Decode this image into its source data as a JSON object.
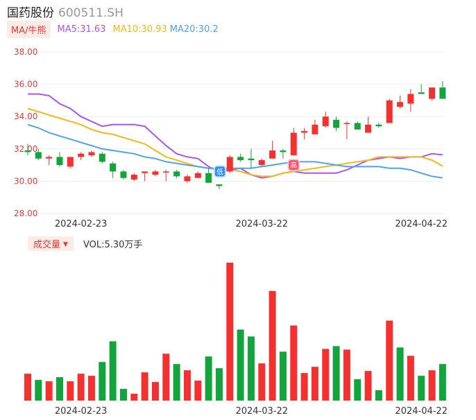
{
  "header": {
    "name": "国药股份",
    "code": "600511.SH"
  },
  "ma_legend": {
    "toggle_label": "MA/牛熊",
    "ma5": "MA5:31.63",
    "ma10": "MA10:30.93",
    "ma20": "MA20:30.2"
  },
  "volume_legend": {
    "toggle_label": "成交量",
    "value": "VOL:5.30万手"
  },
  "markers": {
    "low_marker": "低",
    "high_marker": "高"
  },
  "colors": {
    "up": "#f5302e",
    "down": "#12a53b",
    "ma5": "#a855f7",
    "ma10": "#f5b814",
    "ma20": "#4da3ee",
    "axis_label": "#e4393c",
    "grid": "#eeeeee"
  },
  "chart_data": [
    {
      "type": "candlestick",
      "title": "",
      "ylim": [
        28,
        38
      ],
      "ytick_labels": [
        "38.00",
        "36.00",
        "34.00",
        "32.00",
        "30.00",
        "28.00"
      ],
      "yticks": [
        38,
        36,
        34,
        32,
        30,
        28
      ],
      "xtick_labels": [
        "2024-02-23",
        "2024-03-22",
        "2024-04-22"
      ],
      "xtick_index": [
        5,
        22,
        37
      ],
      "candles": [
        {
          "o": 31.9,
          "c": 31.8,
          "h": 32.3,
          "l": 31.6
        },
        {
          "o": 31.8,
          "c": 31.4,
          "h": 32.0,
          "l": 31.3
        },
        {
          "o": 31.4,
          "c": 31.5,
          "h": 31.6,
          "l": 31.0
        },
        {
          "o": 31.5,
          "c": 31.0,
          "h": 31.8,
          "l": 30.9
        },
        {
          "o": 30.9,
          "c": 31.5,
          "h": 31.5,
          "l": 30.8
        },
        {
          "o": 31.5,
          "c": 31.7,
          "h": 31.8,
          "l": 31.3
        },
        {
          "o": 31.6,
          "c": 31.8,
          "h": 31.9,
          "l": 31.5
        },
        {
          "o": 31.7,
          "c": 31.2,
          "h": 31.8,
          "l": 31.1
        },
        {
          "o": 31.1,
          "c": 30.6,
          "h": 31.2,
          "l": 30.2
        },
        {
          "o": 30.6,
          "c": 30.2,
          "h": 30.7,
          "l": 30.1
        },
        {
          "o": 30.1,
          "c": 30.4,
          "h": 30.5,
          "l": 30.0
        },
        {
          "o": 30.5,
          "c": 30.6,
          "h": 30.6,
          "l": 30.0
        },
        {
          "o": 30.4,
          "c": 30.6,
          "h": 30.7,
          "l": 30.3
        },
        {
          "o": 30.6,
          "c": 30.6,
          "h": 30.7,
          "l": 30.0
        },
        {
          "o": 30.6,
          "c": 30.3,
          "h": 30.7,
          "l": 30.2
        },
        {
          "o": 30.0,
          "c": 30.3,
          "h": 30.4,
          "l": 29.9
        },
        {
          "o": 30.2,
          "c": 30.5,
          "h": 30.6,
          "l": 30.2
        },
        {
          "o": 30.5,
          "c": 29.9,
          "h": 30.8,
          "l": 29.9
        },
        {
          "o": 29.8,
          "c": 29.7,
          "h": 29.8,
          "l": 29.5
        },
        {
          "o": 30.6,
          "c": 31.5,
          "h": 31.6,
          "l": 30.5
        },
        {
          "o": 31.5,
          "c": 31.3,
          "h": 31.7,
          "l": 31.2
        },
        {
          "o": 31.4,
          "c": 31.3,
          "h": 32.0,
          "l": 30.8
        },
        {
          "o": 31.0,
          "c": 31.3,
          "h": 31.4,
          "l": 30.9
        },
        {
          "o": 31.4,
          "c": 31.9,
          "h": 32.5,
          "l": 31.4
        },
        {
          "o": 31.9,
          "c": 31.8,
          "h": 32.0,
          "l": 31.4
        },
        {
          "o": 31.6,
          "c": 33.0,
          "h": 33.3,
          "l": 31.6
        },
        {
          "o": 33.0,
          "c": 33.1,
          "h": 33.3,
          "l": 32.6
        },
        {
          "o": 32.9,
          "c": 33.5,
          "h": 33.8,
          "l": 32.9
        },
        {
          "o": 33.4,
          "c": 34.0,
          "h": 34.3,
          "l": 33.3
        },
        {
          "o": 33.8,
          "c": 33.3,
          "h": 34.0,
          "l": 33.1
        },
        {
          "o": 33.6,
          "c": 33.6,
          "h": 33.7,
          "l": 32.6
        },
        {
          "o": 33.6,
          "c": 33.2,
          "h": 33.7,
          "l": 33.2
        },
        {
          "o": 33.0,
          "c": 33.5,
          "h": 34.0,
          "l": 33.0
        },
        {
          "o": 33.5,
          "c": 33.4,
          "h": 33.6,
          "l": 33.3
        },
        {
          "o": 33.6,
          "c": 35.0,
          "h": 35.1,
          "l": 33.6
        },
        {
          "o": 34.6,
          "c": 34.9,
          "h": 35.3,
          "l": 34.5
        },
        {
          "o": 34.8,
          "c": 35.4,
          "h": 35.7,
          "l": 34.3
        },
        {
          "o": 35.5,
          "c": 35.4,
          "h": 36.0,
          "l": 35.4
        },
        {
          "o": 35.1,
          "c": 35.8,
          "h": 35.8,
          "l": 35.0
        },
        {
          "o": 35.8,
          "c": 35.1,
          "h": 36.2,
          "l": 35.1
        }
      ],
      "series": [
        {
          "name": "MA5",
          "values": [
            35.4,
            35.4,
            35.3,
            34.8,
            34.5,
            34.0,
            33.7,
            33.4,
            33.5,
            33.5,
            33.5,
            33.4,
            32.8,
            32.2,
            31.7,
            31.5,
            31.4,
            30.9,
            30.6,
            30.7,
            30.8,
            30.4,
            30.2,
            30.3,
            30.5,
            30.6,
            30.5,
            30.5,
            30.5,
            30.5,
            30.7,
            31.0,
            31.3,
            31.4,
            31.5,
            31.4,
            31.5,
            31.5,
            31.7,
            31.63
          ]
        },
        {
          "name": "MA10",
          "values": [
            34.5,
            34.3,
            34.1,
            33.9,
            33.7,
            33.5,
            33.2,
            33.0,
            32.9,
            32.7,
            32.5,
            32.3,
            31.9,
            31.5,
            31.3,
            31.1,
            30.9,
            30.8,
            30.7,
            30.7,
            30.6,
            30.4,
            30.3,
            30.3,
            30.5,
            30.6,
            30.7,
            30.8,
            30.9,
            31.0,
            31.1,
            31.2,
            31.3,
            31.5,
            31.5,
            31.5,
            31.5,
            31.5,
            31.3,
            30.93
          ]
        },
        {
          "name": "MA20",
          "values": [
            33.5,
            33.3,
            33.0,
            32.8,
            32.6,
            32.4,
            32.2,
            32.0,
            31.9,
            31.8,
            31.7,
            31.5,
            31.4,
            31.2,
            31.1,
            31.0,
            30.9,
            30.8,
            30.8,
            30.8,
            30.8,
            30.8,
            30.9,
            31.0,
            31.1,
            31.2,
            31.2,
            31.2,
            31.1,
            31.0,
            30.9,
            30.9,
            30.9,
            30.9,
            30.8,
            30.8,
            30.7,
            30.5,
            30.3,
            30.2
          ]
        }
      ]
    },
    {
      "type": "bar",
      "title": "",
      "ylabel": "",
      "ylim": [
        0,
        20
      ],
      "xtick_labels": [
        "2024-02-23",
        "2024-03-22",
        "2024-04-22"
      ],
      "xtick_index": [
        5,
        22,
        37
      ],
      "values": [
        3.9,
        3.0,
        2.8,
        3.4,
        2.8,
        3.9,
        3.6,
        5.6,
        8.6,
        1.7,
        1.0,
        4.1,
        2.7,
        6.8,
        5.3,
        4.4,
        2.9,
        6.4,
        4.7,
        20.0,
        10.3,
        9.3,
        5.4,
        15.9,
        7.1,
        10.9,
        4.0,
        4.9,
        7.5,
        7.9,
        7.4,
        3.1,
        4.3,
        1.5,
        11.6,
        7.7,
        6.5,
        3.6,
        4.4,
        5.3
      ],
      "direction": [
        "up",
        "down",
        "up",
        "down",
        "up",
        "up",
        "up",
        "down",
        "down",
        "down",
        "up",
        "up",
        "up",
        "up",
        "down",
        "up",
        "up",
        "down",
        "down",
        "up",
        "down",
        "down",
        "up",
        "up",
        "down",
        "up",
        "up",
        "up",
        "up",
        "down",
        "up",
        "down",
        "up",
        "down",
        "up",
        "down",
        "up",
        "down",
        "up",
        "down"
      ]
    }
  ]
}
